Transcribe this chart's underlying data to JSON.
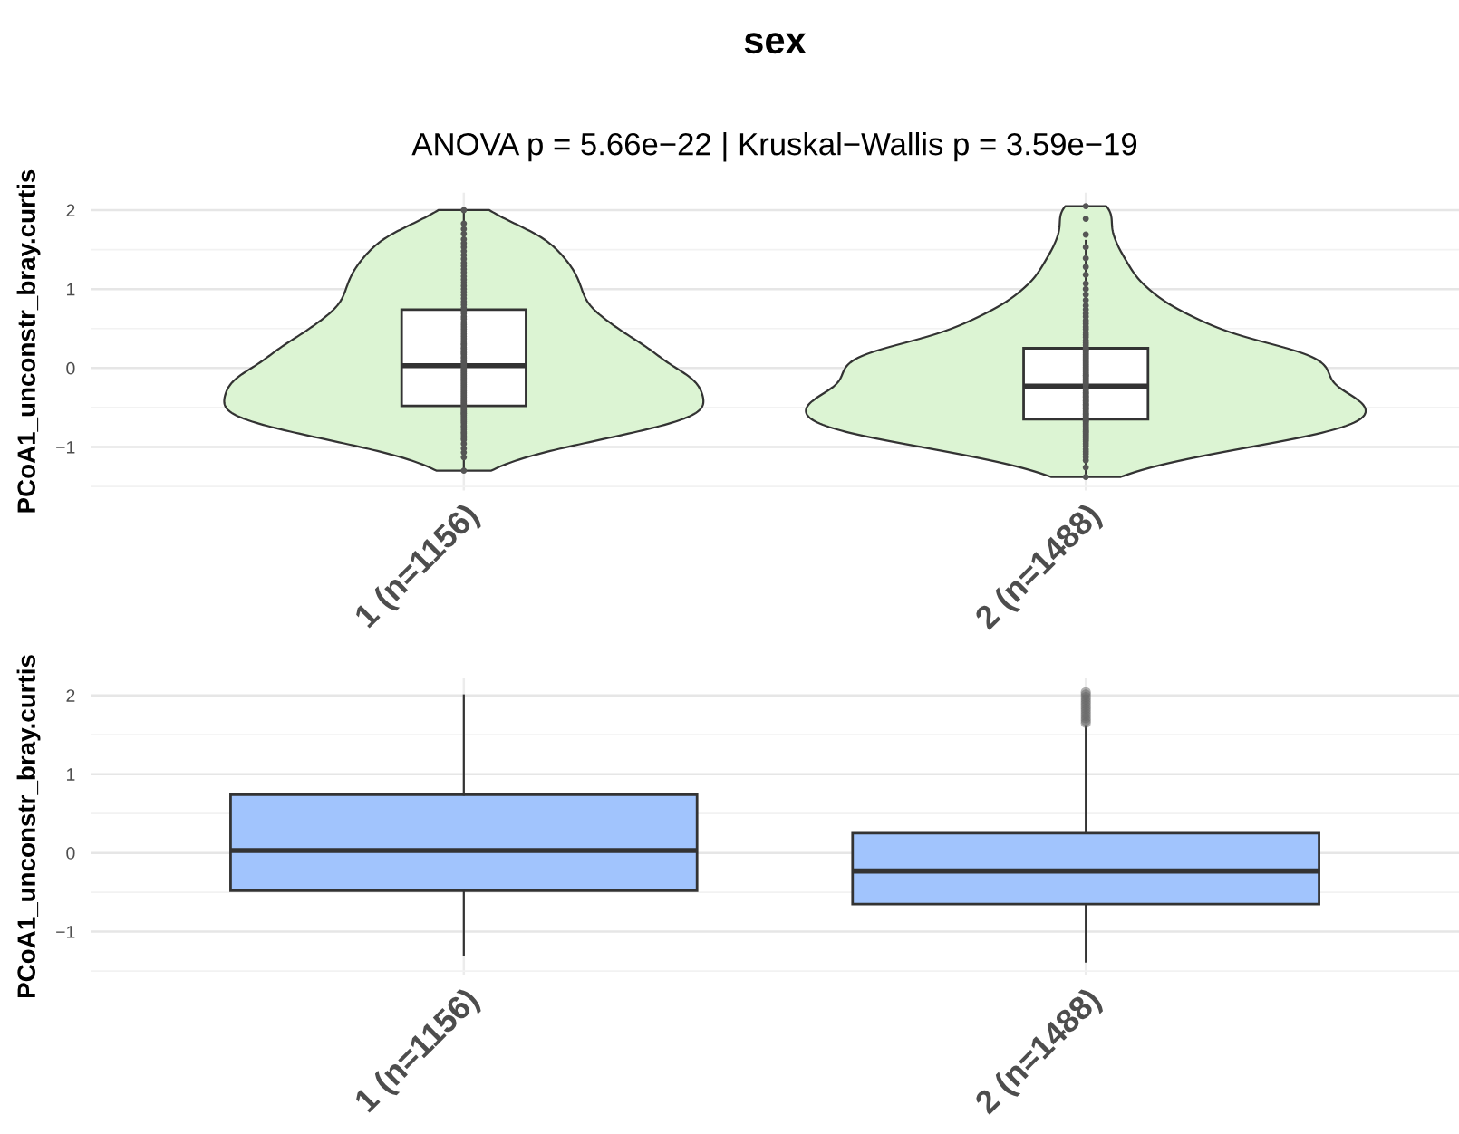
{
  "chart_data": [
    {
      "type": "box",
      "title": "sex",
      "subtitle": "ANOVA p = 5.66e−22 | Kruskal−Wallis p = 3.59e−19",
      "ylabel": "PCoA1_unconstr_bray.curtis",
      "categories": [
        "1 (n=1156)",
        "2 (n=1488)"
      ],
      "ylim": [
        -1.55,
        2.22
      ],
      "yticks": [
        {
          "value": -1.5,
          "label": null
        },
        {
          "value": -1,
          "label": "−1"
        },
        {
          "value": -0.5,
          "label": null
        },
        0,
        {
          "value": 0.5,
          "label": null
        },
        1,
        {
          "value": 1.5,
          "label": null
        },
        2
      ],
      "grid": true,
      "series": [
        {
          "type": "box",
          "color": "#ffffff",
          "boxes": [
            {
              "low": -1.3,
              "q1": -0.48,
              "median": 0.03,
              "q3": 0.74,
              "high": 2.0
            },
            {
              "low": -1.38,
              "q1": -0.65,
              "median": -0.23,
              "q3": 0.25,
              "high": 1.61
            }
          ]
        },
        {
          "type": "scatter",
          "color": "#555555",
          "marker": "circle",
          "x": [
            "1 (n=1156)",
            "1 (n=1156)",
            "1 (n=1156)",
            "1 (n=1156)",
            "1 (n=1156)",
            "1 (n=1156)",
            "1 (n=1156)",
            "1 (n=1156)",
            "1 (n=1156)",
            "1 (n=1156)",
            "1 (n=1156)",
            "1 (n=1156)",
            "1 (n=1156)",
            "1 (n=1156)",
            "1 (n=1156)",
            "1 (n=1156)",
            "1 (n=1156)",
            "1 (n=1156)",
            "1 (n=1156)",
            "1 (n=1156)",
            "1 (n=1156)",
            "1 (n=1156)",
            "1 (n=1156)",
            "1 (n=1156)",
            "1 (n=1156)",
            "1 (n=1156)",
            "1 (n=1156)",
            "1 (n=1156)",
            "1 (n=1156)",
            "1 (n=1156)",
            "1 (n=1156)",
            "1 (n=1156)",
            "1 (n=1156)",
            "1 (n=1156)",
            "1 (n=1156)",
            "1 (n=1156)",
            "1 (n=1156)",
            "1 (n=1156)",
            "1 (n=1156)",
            "1 (n=1156)",
            "1 (n=1156)",
            "1 (n=1156)",
            "1 (n=1156)",
            "1 (n=1156)",
            "1 (n=1156)",
            "1 (n=1156)",
            "1 (n=1156)",
            "1 (n=1156)",
            "1 (n=1156)",
            "1 (n=1156)",
            "1 (n=1156)",
            "1 (n=1156)",
            "1 (n=1156)",
            "1 (n=1156)",
            "1 (n=1156)",
            "1 (n=1156)",
            "1 (n=1156)",
            "1 (n=1156)",
            "1 (n=1156)",
            "1 (n=1156)",
            "1 (n=1156)",
            "1 (n=1156)",
            "1 (n=1156)",
            "1 (n=1156)",
            "1 (n=1156)",
            "1 (n=1156)",
            "1 (n=1156)",
            "1 (n=1156)",
            "1 (n=1156)",
            "1 (n=1156)",
            "1 (n=1156)",
            "1 (n=1156)",
            "1 (n=1156)",
            "1 (n=1156)",
            "1 (n=1156)",
            "1 (n=1156)",
            "1 (n=1156)",
            "1 (n=1156)",
            "1 (n=1156)",
            "1 (n=1156)",
            "1 (n=1156)",
            "1 (n=1156)",
            "1 (n=1156)",
            "1 (n=1156)",
            "1 (n=1156)",
            "1 (n=1156)",
            "1 (n=1156)",
            "1 (n=1156)",
            "1 (n=1156)",
            "1 (n=1156)",
            "1 (n=1156)",
            "1 (n=1156)",
            "1 (n=1156)",
            "1 (n=1156)",
            "1 (n=1156)",
            "1 (n=1156)",
            "1 (n=1156)",
            "1 (n=1156)",
            "1 (n=1156)",
            "1 (n=1156)"
          ],
          "values": [
            -1.3,
            -1.13,
            -1.07,
            -1.02,
            -0.96,
            -0.91,
            -0.89,
            -0.86,
            -0.83,
            -0.81,
            -0.78,
            -0.75,
            -0.73,
            -0.7,
            -0.68,
            -0.66,
            -0.64,
            -0.62,
            -0.6,
            -0.58,
            -0.57,
            -0.55,
            -0.53,
            -0.51,
            -0.49,
            -0.47,
            -0.45,
            -0.43,
            -0.41,
            -0.39,
            -0.37,
            -0.35,
            -0.33,
            -0.31,
            -0.29,
            -0.27,
            -0.25,
            -0.23,
            -0.21,
            -0.19,
            -0.17,
            -0.15,
            -0.13,
            -0.11,
            -0.09,
            -0.07,
            -0.05,
            -0.03,
            -0.01,
            0.02,
            0.04,
            0.07,
            0.09,
            0.12,
            0.14,
            0.17,
            0.19,
            0.21,
            0.24,
            0.26,
            0.29,
            0.31,
            0.34,
            0.37,
            0.4,
            0.43,
            0.46,
            0.49,
            0.52,
            0.55,
            0.58,
            0.62,
            0.65,
            0.69,
            0.72,
            0.76,
            0.8,
            0.84,
            0.88,
            0.92,
            0.96,
            1.0,
            1.04,
            1.08,
            1.12,
            1.16,
            1.21,
            1.25,
            1.29,
            1.33,
            1.38,
            1.43,
            1.48,
            1.53,
            1.58,
            1.63,
            1.7,
            1.76,
            1.83,
            2.0
          ]
        },
        {
          "type": "scatter",
          "color": "#555555",
          "marker": "circle",
          "x": [
            "2 (n=1488)",
            "2 (n=1488)",
            "2 (n=1488)",
            "2 (n=1488)",
            "2 (n=1488)",
            "2 (n=1488)",
            "2 (n=1488)",
            "2 (n=1488)",
            "2 (n=1488)",
            "2 (n=1488)",
            "2 (n=1488)",
            "2 (n=1488)",
            "2 (n=1488)",
            "2 (n=1488)",
            "2 (n=1488)",
            "2 (n=1488)",
            "2 (n=1488)",
            "2 (n=1488)",
            "2 (n=1488)",
            "2 (n=1488)",
            "2 (n=1488)",
            "2 (n=1488)",
            "2 (n=1488)",
            "2 (n=1488)",
            "2 (n=1488)",
            "2 (n=1488)",
            "2 (n=1488)",
            "2 (n=1488)",
            "2 (n=1488)",
            "2 (n=1488)",
            "2 (n=1488)",
            "2 (n=1488)",
            "2 (n=1488)",
            "2 (n=1488)",
            "2 (n=1488)",
            "2 (n=1488)",
            "2 (n=1488)",
            "2 (n=1488)",
            "2 (n=1488)",
            "2 (n=1488)",
            "2 (n=1488)",
            "2 (n=1488)",
            "2 (n=1488)",
            "2 (n=1488)",
            "2 (n=1488)",
            "2 (n=1488)",
            "2 (n=1488)",
            "2 (n=1488)",
            "2 (n=1488)",
            "2 (n=1488)",
            "2 (n=1488)",
            "2 (n=1488)",
            "2 (n=1488)",
            "2 (n=1488)",
            "2 (n=1488)",
            "2 (n=1488)",
            "2 (n=1488)",
            "2 (n=1488)",
            "2 (n=1488)",
            "2 (n=1488)",
            "2 (n=1488)",
            "2 (n=1488)",
            "2 (n=1488)",
            "2 (n=1488)",
            "2 (n=1488)",
            "2 (n=1488)",
            "2 (n=1488)",
            "2 (n=1488)",
            "2 (n=1488)",
            "2 (n=1488)",
            "2 (n=1488)",
            "2 (n=1488)",
            "2 (n=1488)",
            "2 (n=1488)",
            "2 (n=1488)",
            "2 (n=1488)",
            "2 (n=1488)",
            "2 (n=1488)",
            "2 (n=1488)",
            "2 (n=1488)",
            "2 (n=1488)",
            "2 (n=1488)",
            "2 (n=1488)",
            "2 (n=1488)",
            "2 (n=1488)",
            "2 (n=1488)",
            "2 (n=1488)",
            "2 (n=1488)",
            "2 (n=1488)",
            "2 (n=1488)",
            "2 (n=1488)",
            "2 (n=1488)",
            "2 (n=1488)",
            "2 (n=1488)",
            "2 (n=1488)",
            "2 (n=1488)",
            "2 (n=1488)",
            "2 (n=1488)",
            "2 (n=1488)",
            "2 (n=1488)"
          ],
          "values": [
            -1.38,
            -1.26,
            -1.17,
            -1.13,
            -1.09,
            -1.06,
            -1.03,
            -0.99,
            -0.96,
            -0.93,
            -0.91,
            -0.89,
            -0.87,
            -0.85,
            -0.83,
            -0.81,
            -0.8,
            -0.78,
            -0.76,
            -0.74,
            -0.72,
            -0.7,
            -0.68,
            -0.67,
            -0.66,
            -0.64,
            -0.63,
            -0.61,
            -0.59,
            -0.58,
            -0.56,
            -0.54,
            -0.52,
            -0.51,
            -0.49,
            -0.47,
            -0.46,
            -0.44,
            -0.42,
            -0.41,
            -0.39,
            -0.37,
            -0.36,
            -0.34,
            -0.32,
            -0.31,
            -0.29,
            -0.27,
            -0.26,
            -0.22,
            -0.2,
            -0.18,
            -0.16,
            -0.14,
            -0.12,
            -0.1,
            -0.09,
            -0.07,
            -0.05,
            -0.03,
            -0.01,
            0.01,
            0.03,
            0.05,
            0.07,
            0.09,
            0.11,
            0.13,
            0.15,
            0.17,
            0.19,
            0.21,
            0.23,
            0.24,
            0.26,
            0.29,
            0.32,
            0.35,
            0.39,
            0.42,
            0.45,
            0.49,
            0.52,
            0.56,
            0.6,
            0.65,
            0.69,
            0.74,
            0.79,
            0.86,
            0.93,
            1.0,
            1.07,
            1.18,
            1.28,
            1.39,
            1.53,
            1.69,
            1.89,
            2.05
          ]
        }
      ]
    },
    {
      "type": "box",
      "ylabel": "PCoA1_unconstr_bray.curtis",
      "categories": [
        "1 (n=1156)",
        "2 (n=1488)"
      ],
      "ylim": [
        -1.55,
        2.22
      ],
      "yticks": [
        {
          "value": -1.5,
          "label": null
        },
        {
          "value": -1,
          "label": "−1"
        },
        {
          "value": -0.5,
          "label": null
        },
        0,
        {
          "value": 0.5,
          "label": null
        },
        1,
        {
          "value": 1.5,
          "label": null
        },
        2
      ],
      "grid": true,
      "colors": [
        "#a1c4fd",
        "#a1c4fd"
      ],
      "boxes": [
        {
          "low": -1.3,
          "q1": -0.48,
          "median": 0.03,
          "q3": 0.74,
          "high": 2.0
        },
        {
          "low": -1.38,
          "q1": -0.65,
          "median": -0.23,
          "q3": 0.25,
          "high": 1.61,
          "outliers": [
            1.65,
            1.68,
            1.71,
            1.74,
            1.77,
            1.8,
            1.83,
            1.86,
            1.89,
            1.92,
            1.95,
            1.98,
            2.01,
            2.04
          ]
        }
      ]
    }
  ]
}
